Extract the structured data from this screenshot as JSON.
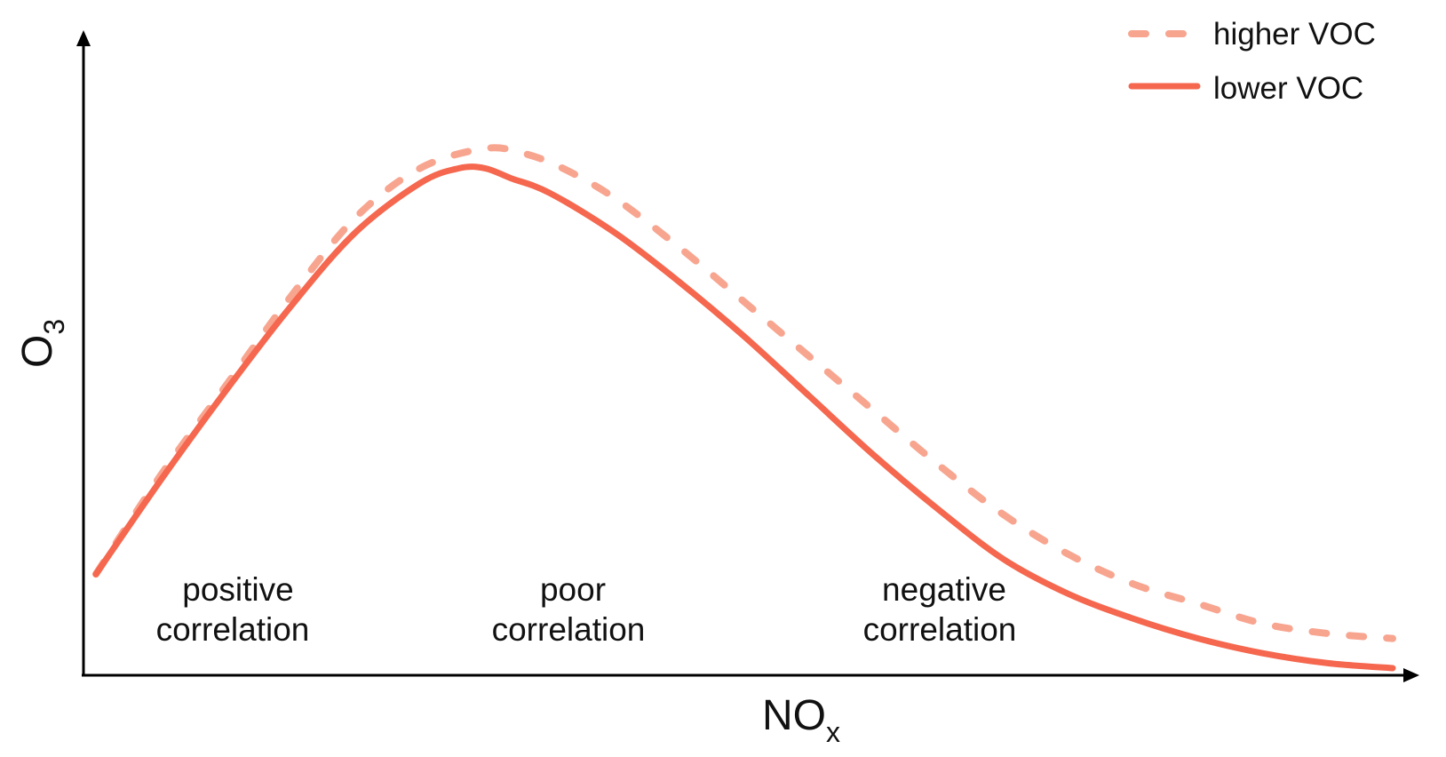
{
  "chart_data": {
    "type": "line",
    "xlabel": "NOx",
    "xlabel_main": "NO",
    "xlabel_sub": "x",
    "ylabel": "O3",
    "ylabel_main": "O",
    "ylabel_sub": "3",
    "xlim": [
      0,
      100
    ],
    "ylim": [
      0,
      100
    ],
    "grid": false,
    "legend_position": "top-right",
    "series": [
      {
        "name": "higher VOC",
        "style": "dashed",
        "color": "#F8A590",
        "x": [
          0,
          5,
          10,
          15,
          20,
          25,
          30,
          33,
          36,
          40,
          45,
          50,
          55,
          60,
          65,
          70,
          75,
          80,
          85,
          90,
          95,
          100
        ],
        "y": [
          19,
          39,
          57,
          75,
          91,
          101,
          105,
          104,
          101,
          95,
          85,
          74,
          63,
          52,
          41,
          31,
          23,
          17,
          13,
          9,
          7,
          6
        ]
      },
      {
        "name": "lower VOC",
        "style": "solid",
        "color": "#F5674E",
        "x": [
          0,
          5,
          10,
          15,
          20,
          25,
          28,
          30,
          32,
          35,
          40,
          45,
          50,
          55,
          60,
          65,
          70,
          75,
          80,
          85,
          90,
          95,
          100
        ],
        "y": [
          19,
          38,
          56,
          73,
          88,
          98,
          101,
          101,
          99,
          96,
          88,
          78,
          67,
          55,
          43,
          32,
          22,
          15,
          10,
          6,
          3,
          1,
          0
        ]
      }
    ],
    "annotations": [
      {
        "line1": "positive",
        "line2": "correlation"
      },
      {
        "line1": "poor",
        "line2": "correlation"
      },
      {
        "line1": "negative",
        "line2": "correlation"
      }
    ]
  }
}
